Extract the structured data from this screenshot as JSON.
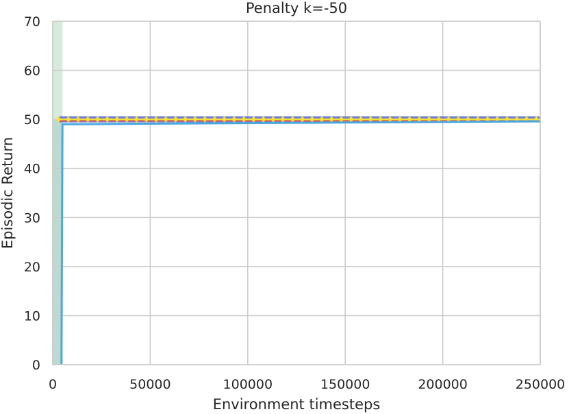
{
  "chart_data": {
    "type": "line",
    "title": "Penalty k=-50",
    "xlabel": "Environment timesteps",
    "ylabel": "Episodic Return",
    "xlim": [
      0,
      250000
    ],
    "ylim": [
      0,
      70
    ],
    "xticks": [
      0,
      50000,
      100000,
      150000,
      200000,
      250000
    ],
    "yticks": [
      0,
      10,
      20,
      30,
      40,
      50,
      60,
      70
    ],
    "grid": true,
    "shaded_region": {
      "x": [
        0,
        5000
      ],
      "y": [
        0,
        70
      ],
      "color": "#cfe8d6"
    },
    "series": [
      {
        "color": "#6f7fd6",
        "points": [
          [
            3000,
            50
          ],
          [
            250000,
            50
          ]
        ]
      },
      {
        "color": "#e8544e",
        "points": [
          [
            3000,
            49.7
          ],
          [
            250000,
            49.7
          ]
        ]
      },
      {
        "color": "#f5e03a",
        "marker": "diamond",
        "points": [
          [
            3000,
            50
          ],
          [
            250000,
            50
          ]
        ]
      },
      {
        "color": "#4aa8e0",
        "points": [
          [
            4500,
            0
          ],
          [
            5000,
            49
          ],
          [
            250000,
            49.6
          ]
        ]
      }
    ]
  }
}
